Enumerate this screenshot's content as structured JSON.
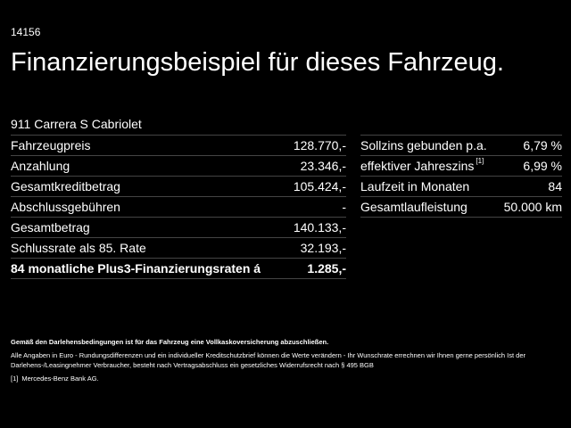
{
  "header": {
    "code": "14156",
    "title": "Finanzierungsbeispiel für dieses Fahrzeug.",
    "model": "911 Carrera S Cabriolet"
  },
  "left_table": [
    {
      "label": "Fahrzeugpreis",
      "value": "128.770,-"
    },
    {
      "label": "Anzahlung",
      "value": "23.346,-"
    },
    {
      "label": "Gesamtkreditbetrag",
      "value": "105.424,-"
    },
    {
      "label": "Abschlussgebühren",
      "value": "-"
    },
    {
      "label": "Gesamtbetrag",
      "value": "140.133,-"
    },
    {
      "label": "Schlussrate als 85. Rate",
      "value": "32.193,-"
    },
    {
      "label": "84 monatliche Plus3-Finanzierungsraten á",
      "value": "1.285,-"
    }
  ],
  "right_table": [
    {
      "label": "Sollzins gebunden p.a.",
      "sup": "",
      "value": "6,79 %"
    },
    {
      "label": "effektiver Jahreszins",
      "sup": "[1]",
      "value": "6,99 %"
    },
    {
      "label": "Laufzeit in Monaten",
      "sup": "",
      "value": "84"
    },
    {
      "label": "Gesamtlaufleistung",
      "sup": "",
      "value": "50.000 km"
    }
  ],
  "footnotes": {
    "insurance": "Gemäß den Darlehensbedingungen ist für das Fahrzeug eine Vollkaskoversicherung abzuschließen.",
    "disclaimer": "Alle Angaben in Euro - Rundungsdifferenzen und ein individueller Kreditschutzbrief können die Werte verändern - Ihr Wunschrate errechnen wir Ihnen gerne persönlich Ist der Darlehens-/Leasingnehmer Verbraucher, besteht nach Vertragsabschluss ein gesetzliches Widerrufsrecht nach § 495 BGB",
    "ref_marker": "[1]",
    "ref_text": "Mercedes-Benz Bank AG."
  }
}
